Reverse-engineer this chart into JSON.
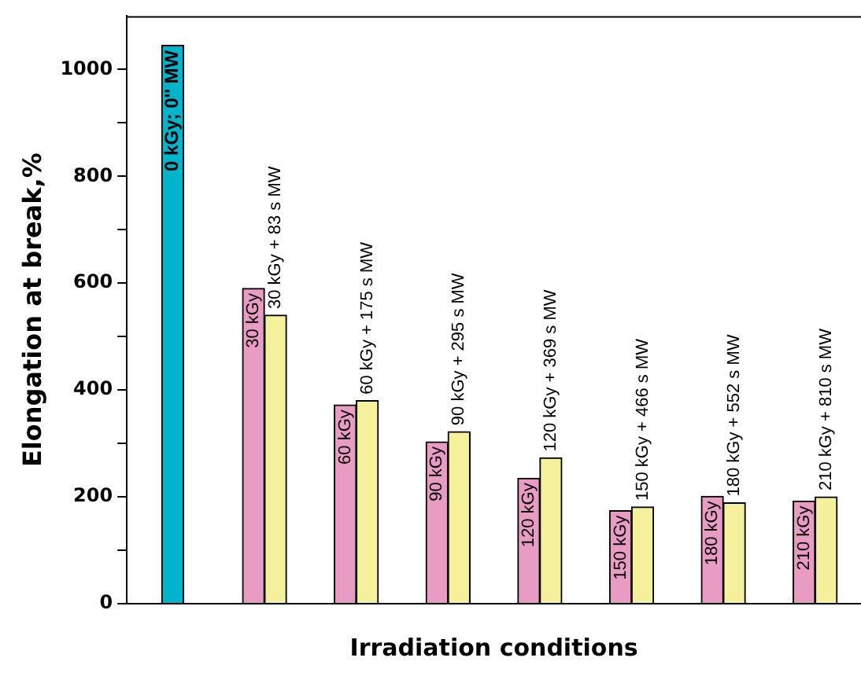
{
  "chart_data": {
    "type": "bar",
    "xlabel": "Irradiation conditions",
    "ylabel": "Elongation at break,%",
    "categories": [
      null,
      null,
      null,
      null,
      null,
      null,
      null,
      null
    ],
    "series": [
      {
        "color": "#00b4cc",
        "values": [
          1045,
          null,
          null,
          null,
          null,
          null,
          null,
          null
        ]
      },
      {
        "color": "#e89cc4",
        "values": [
          null,
          590,
          372,
          303,
          235,
          174,
          201,
          192
        ]
      },
      {
        "color": "#f5f09c",
        "values": [
          null,
          540,
          380,
          322,
          273,
          181,
          189,
          200
        ]
      }
    ],
    "annotations": [
      "0 kGy; 0'' MW",
      "30 kGy",
      "60 kGy",
      "90 kGy",
      "120 kGy",
      "150 kGy",
      "180 kGy",
      "210 kGy",
      "30 kGy + 83 s MW",
      "60 kGy + 175 s MW",
      "90 kGy + 295 s MW",
      "120 kGy + 369 s MW",
      "150 kGy + 466 s MW",
      "180 kGy + 552 s MW",
      "210 kGy + 810 s MW"
    ],
    "ylim": [
      0,
      1100
    ],
    "yticks": [
      0,
      {
        "value": 100,
        "label": null
      },
      200,
      {
        "value": 300,
        "label": null
      },
      400,
      {
        "value": 500,
        "label": null
      },
      600,
      {
        "value": 700,
        "label": null
      },
      800,
      {
        "value": 900,
        "label": null
      },
      1000
    ],
    "grid": false,
    "legend": false
  }
}
